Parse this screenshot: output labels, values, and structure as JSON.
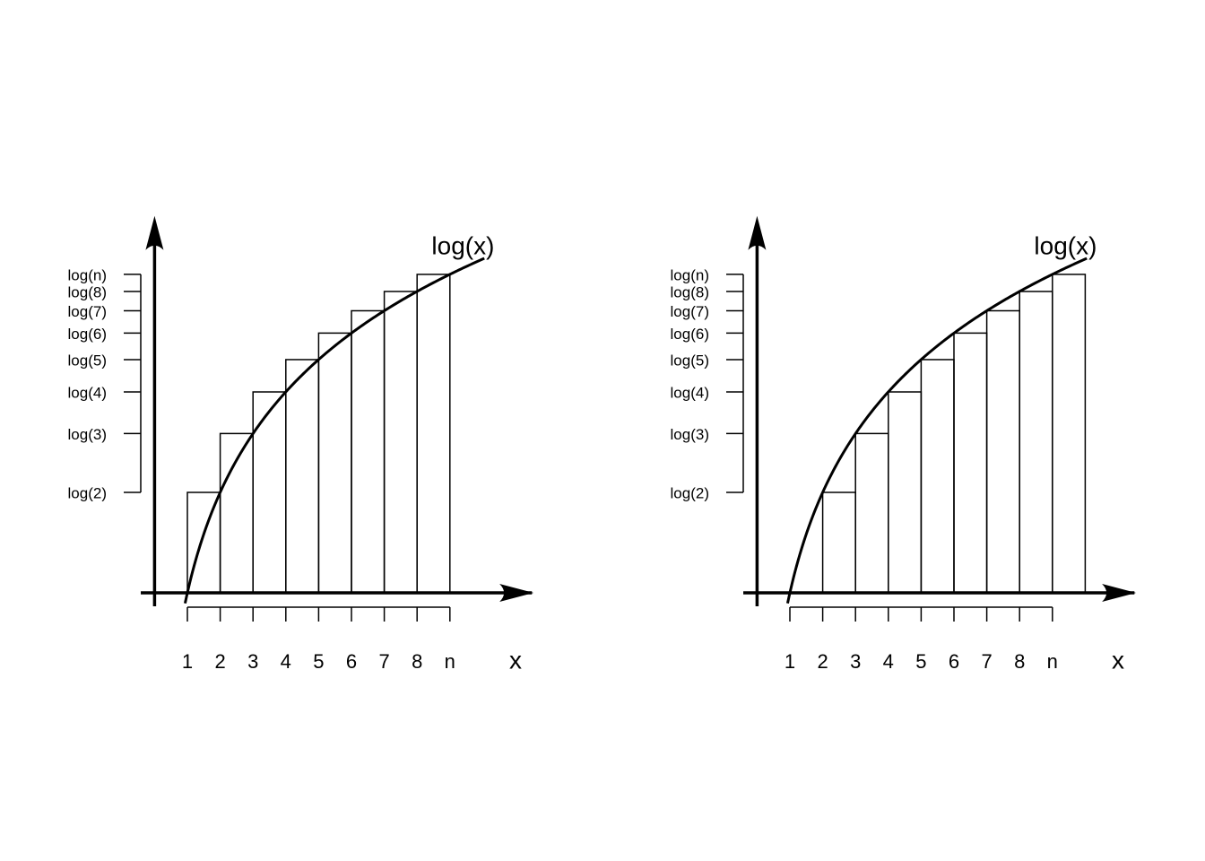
{
  "chart_data": [
    {
      "type": "bar",
      "annotation": "log(x)",
      "x_label": "x",
      "x": [
        1,
        2,
        3,
        4,
        5,
        6,
        7,
        8
      ],
      "values": [
        0.693,
        1.099,
        1.386,
        1.609,
        1.792,
        1.946,
        2.079,
        2.197
      ],
      "xlim": [
        0,
        12
      ],
      "ylim": [
        0,
        2.6
      ],
      "xticks": [
        1,
        2,
        3,
        4,
        5,
        6,
        7,
        8,
        {
          "value": 9,
          "label": "n"
        }
      ],
      "yticks": [
        {
          "value": 0.693,
          "label": "log(2)"
        },
        {
          "value": 1.099,
          "label": "log(3)"
        },
        {
          "value": 1.386,
          "label": "log(4)"
        },
        {
          "value": 1.609,
          "label": "log(5)"
        },
        {
          "value": 1.792,
          "label": "log(6)"
        },
        {
          "value": 1.946,
          "label": "log(7)"
        },
        {
          "value": 2.079,
          "label": "log(8)"
        },
        {
          "value": 2.197,
          "label": "log(n)"
        }
      ]
    },
    {
      "type": "bar",
      "annotation": "log(x)",
      "x_label": "x",
      "x": [
        2,
        3,
        4,
        5,
        6,
        7,
        8,
        9
      ],
      "values": [
        0.693,
        1.099,
        1.386,
        1.609,
        1.792,
        1.946,
        2.079,
        2.197
      ],
      "xlim": [
        0,
        12
      ],
      "ylim": [
        0,
        2.6
      ],
      "xticks": [
        1,
        2,
        3,
        4,
        5,
        6,
        7,
        8,
        {
          "value": 9,
          "label": "n"
        }
      ],
      "yticks": [
        {
          "value": 0.693,
          "label": "log(2)"
        },
        {
          "value": 1.099,
          "label": "log(3)"
        },
        {
          "value": 1.386,
          "label": "log(4)"
        },
        {
          "value": 1.609,
          "label": "log(5)"
        },
        {
          "value": 1.792,
          "label": "log(6)"
        },
        {
          "value": 1.946,
          "label": "log(7)"
        },
        {
          "value": 2.079,
          "label": "log(8)"
        },
        {
          "value": 2.197,
          "label": "log(n)"
        }
      ]
    }
  ]
}
